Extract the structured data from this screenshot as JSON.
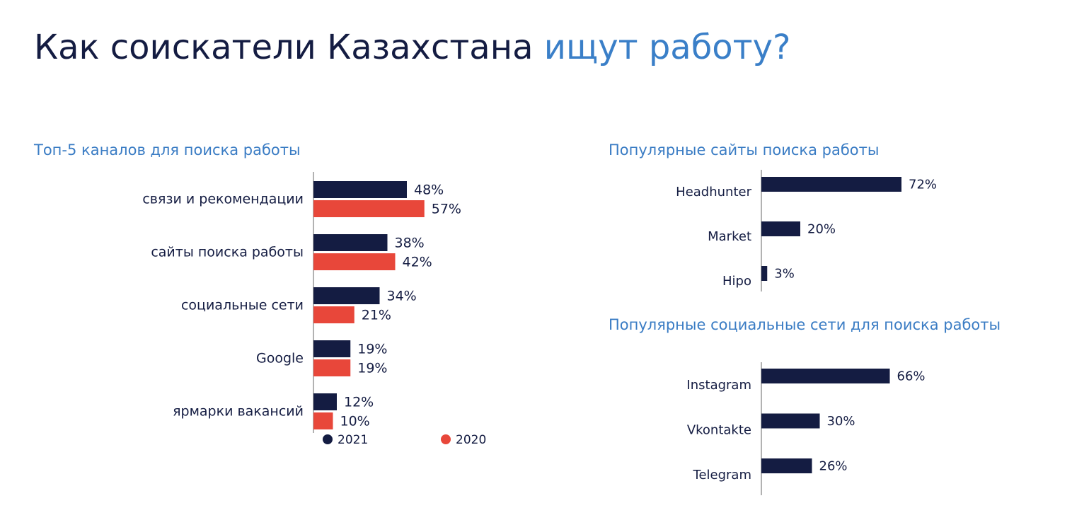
{
  "title": "Как соискатели Казахстана",
  "title_highlight": "ищут работу?",
  "chart_data": [
    {
      "type": "bar",
      "title": "Топ-5 каналов для поиска работы",
      "categories": [
        "связи и рекомендации",
        "сайты поиска работы",
        "социальные сети",
        "Google",
        "ярмарки вакансий"
      ],
      "series": [
        {
          "name": "2021",
          "color": "#141c42",
          "values": [
            48,
            38,
            34,
            19,
            12
          ],
          "value_labels": [
            "48%",
            "38%",
            "34%",
            "19%",
            "12%"
          ]
        },
        {
          "name": "2020",
          "color": "#e8473a",
          "values": [
            57,
            42,
            21,
            19,
            10
          ],
          "value_labels": [
            "57%",
            "42%",
            "21%",
            "19%",
            "10%"
          ]
        }
      ]
    },
    {
      "type": "bar",
      "title": "Популярные сайты поиска работы",
      "categories": [
        "Headhunter",
        "Market",
        "Hipo"
      ],
      "series": [
        {
          "color": "#141c42",
          "values": [
            72,
            20,
            3
          ],
          "value_labels": [
            "72%",
            "20%",
            "3%"
          ]
        }
      ]
    },
    {
      "type": "bar",
      "title": "Популярные социальные сети для поиска работы",
      "categories": [
        "Instagram",
        "Vkontakte",
        "Telegram"
      ],
      "series": [
        {
          "color": "#141c42",
          "values": [
            66,
            30,
            26
          ],
          "value_labels": [
            "66%",
            "30%",
            "26%"
          ]
        }
      ]
    }
  ]
}
